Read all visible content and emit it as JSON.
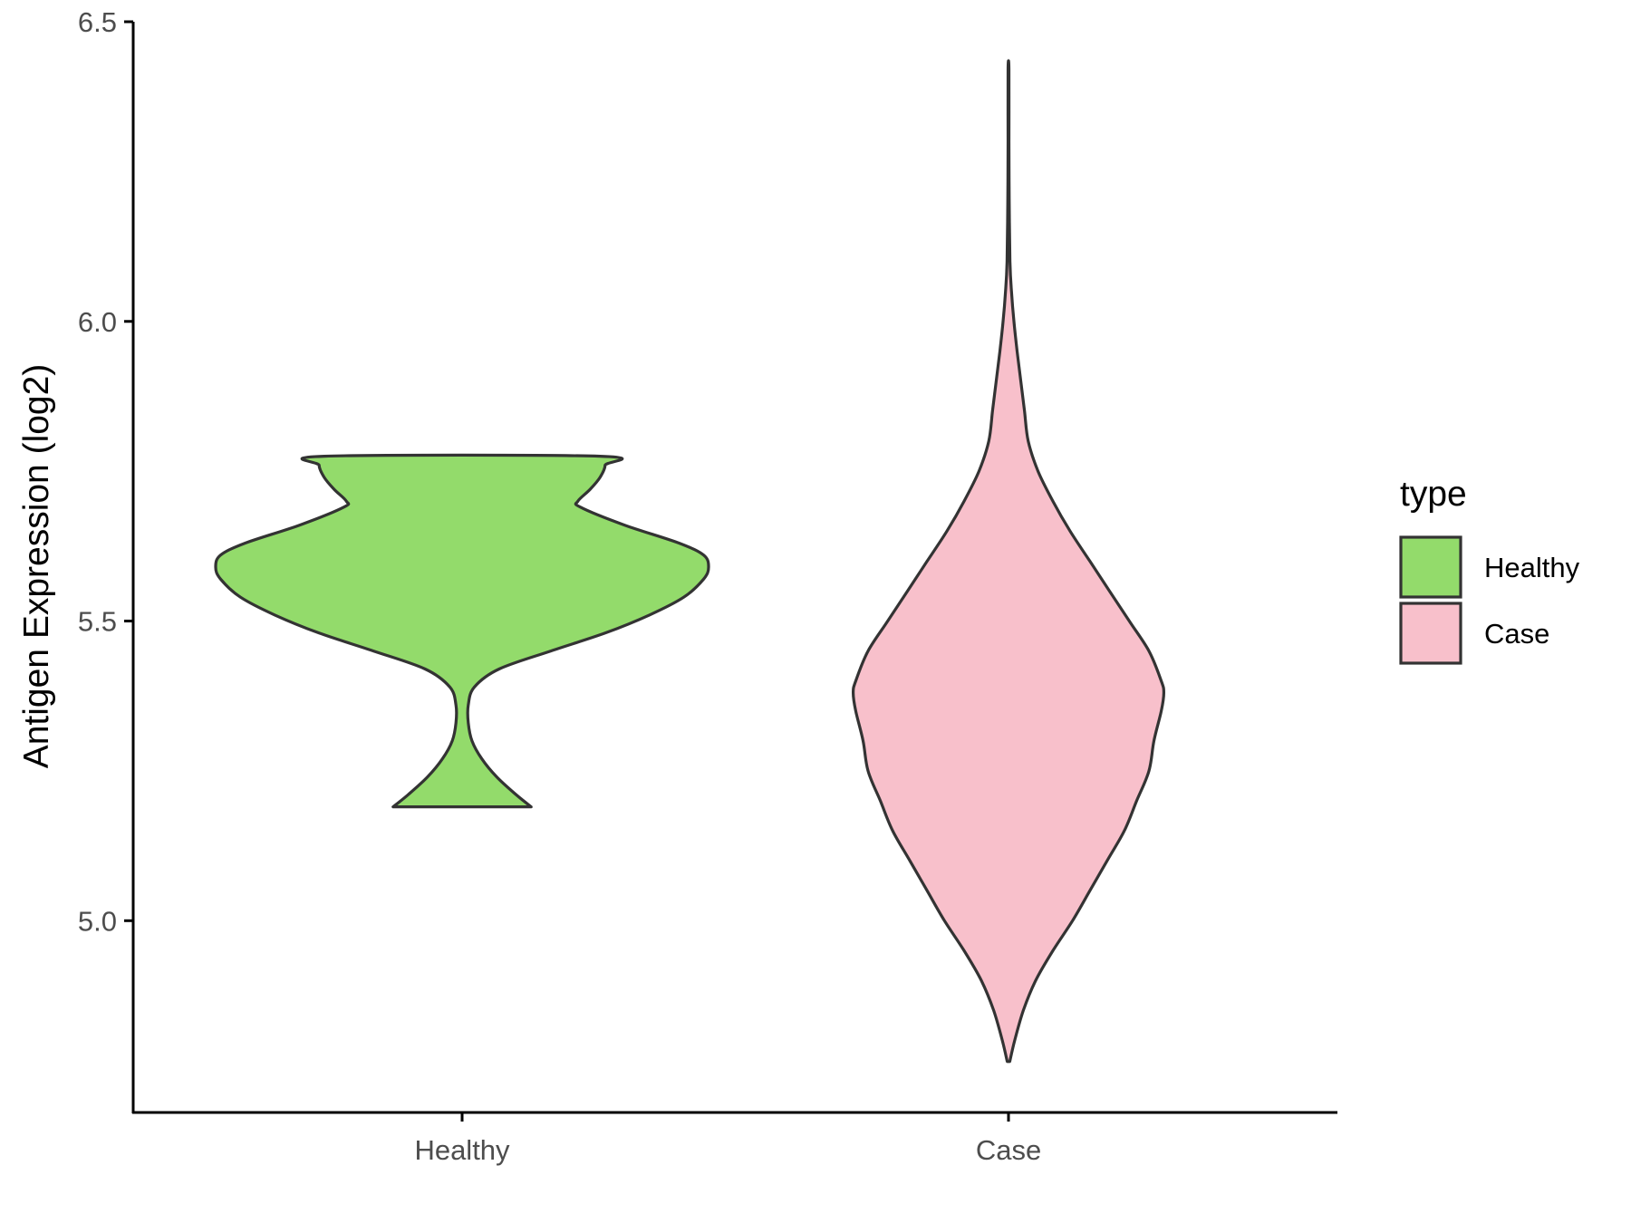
{
  "chart_data": {
    "type": "violin",
    "categories": [
      "Healthy",
      "Case"
    ],
    "ylabel": "Antigen Expression (log2)",
    "xlabel": "",
    "ylim": [
      4.68,
      6.5
    ],
    "yticks": [
      "5.0",
      "5.5",
      "6.0",
      "6.5"
    ],
    "ytick_values": [
      5.0,
      5.5,
      6.0,
      6.5
    ],
    "grid": false,
    "legend": {
      "title": "type",
      "position": "right",
      "items": [
        {
          "label": "Healthy",
          "color": "#93db6b"
        },
        {
          "label": "Case",
          "color": "#f8c0cb"
        }
      ]
    },
    "series": [
      {
        "category": "Healthy",
        "color": "#93db6b",
        "outline": "#333333",
        "min": 5.19,
        "max": 5.775,
        "density_profile": [
          [
            5.19,
            0.28
          ],
          [
            5.21,
            0.22
          ],
          [
            5.24,
            0.14
          ],
          [
            5.27,
            0.08
          ],
          [
            5.3,
            0.04
          ],
          [
            5.33,
            0.025
          ],
          [
            5.36,
            0.025
          ],
          [
            5.39,
            0.05
          ],
          [
            5.42,
            0.15
          ],
          [
            5.45,
            0.36
          ],
          [
            5.48,
            0.58
          ],
          [
            5.51,
            0.76
          ],
          [
            5.54,
            0.9
          ],
          [
            5.57,
            0.98
          ],
          [
            5.59,
            1.0
          ],
          [
            5.61,
            0.98
          ],
          [
            5.63,
            0.88
          ],
          [
            5.66,
            0.66
          ],
          [
            5.69,
            0.48
          ],
          [
            5.7,
            0.47
          ],
          [
            5.72,
            0.52
          ],
          [
            5.74,
            0.56
          ],
          [
            5.76,
            0.58
          ],
          [
            5.775,
            0.56
          ]
        ]
      },
      {
        "category": "Case",
        "color": "#f8c0cb",
        "outline": "#333333",
        "min": 4.765,
        "max": 6.42,
        "density_profile": [
          [
            4.765,
            0.005
          ],
          [
            4.8,
            0.025
          ],
          [
            4.85,
            0.06
          ],
          [
            4.9,
            0.11
          ],
          [
            4.95,
            0.18
          ],
          [
            5.0,
            0.26
          ],
          [
            5.05,
            0.33
          ],
          [
            5.1,
            0.4
          ],
          [
            5.15,
            0.47
          ],
          [
            5.2,
            0.52
          ],
          [
            5.25,
            0.57
          ],
          [
            5.3,
            0.59
          ],
          [
            5.35,
            0.62
          ],
          [
            5.38,
            0.63
          ],
          [
            5.4,
            0.62
          ],
          [
            5.45,
            0.57
          ],
          [
            5.5,
            0.49
          ],
          [
            5.55,
            0.41
          ],
          [
            5.6,
            0.33
          ],
          [
            5.65,
            0.25
          ],
          [
            5.7,
            0.18
          ],
          [
            5.75,
            0.12
          ],
          [
            5.8,
            0.08
          ],
          [
            5.85,
            0.065
          ],
          [
            5.9,
            0.05
          ],
          [
            5.95,
            0.035
          ],
          [
            6.0,
            0.022
          ],
          [
            6.05,
            0.012
          ],
          [
            6.1,
            0.006
          ],
          [
            6.2,
            0.003
          ],
          [
            6.3,
            0.002
          ],
          [
            6.42,
            0.002
          ]
        ]
      }
    ]
  }
}
